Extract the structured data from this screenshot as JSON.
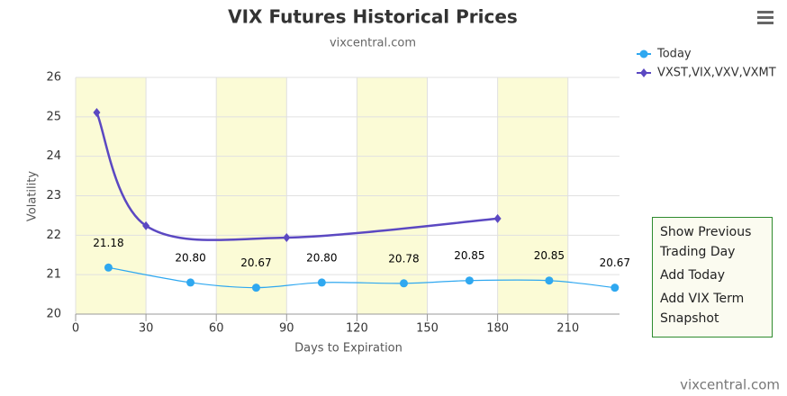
{
  "chart_data": {
    "type": "spline",
    "title": "VIX Futures Historical Prices",
    "subtitle": "vixcentral.com",
    "x_label": "Days to Expiration",
    "y_label": "Volatility",
    "xlim": [
      0,
      232
    ],
    "xticks": [
      0,
      30,
      60,
      90,
      120,
      150,
      180,
      210
    ],
    "ylim": [
      20,
      26
    ],
    "yticks": [
      20,
      21,
      22,
      23,
      24,
      25,
      26
    ],
    "plot_bands": [
      [
        0,
        30
      ],
      [
        60,
        90
      ],
      [
        120,
        150
      ],
      [
        180,
        210
      ]
    ],
    "band_color": "#fbfbd6",
    "grid": true,
    "legend": "top-right",
    "credits": "vixcentral.com",
    "series": [
      {
        "name": "Today",
        "color": "#2fa8f0",
        "marker": "circle",
        "x": [
          14,
          49,
          77,
          105,
          140,
          168,
          202,
          230
        ],
        "values": [
          21.18,
          20.8,
          20.67,
          20.8,
          20.78,
          20.85,
          20.85,
          20.67
        ],
        "value_labels": [
          "21.18",
          "20.80",
          "20.67",
          "20.80",
          "20.78",
          "20.85",
          "20.85",
          "20.67"
        ]
      },
      {
        "name": "VXST,VIX,VXV,VXMT",
        "color": "#5b48c2",
        "marker": "diamond",
        "x": [
          9,
          30,
          90,
          180
        ],
        "values": [
          25.11,
          22.24,
          21.94,
          22.42
        ]
      }
    ]
  },
  "controls": [
    "Show Previous Trading Day",
    "Add Today",
    "Add VIX Term Snapshot"
  ]
}
